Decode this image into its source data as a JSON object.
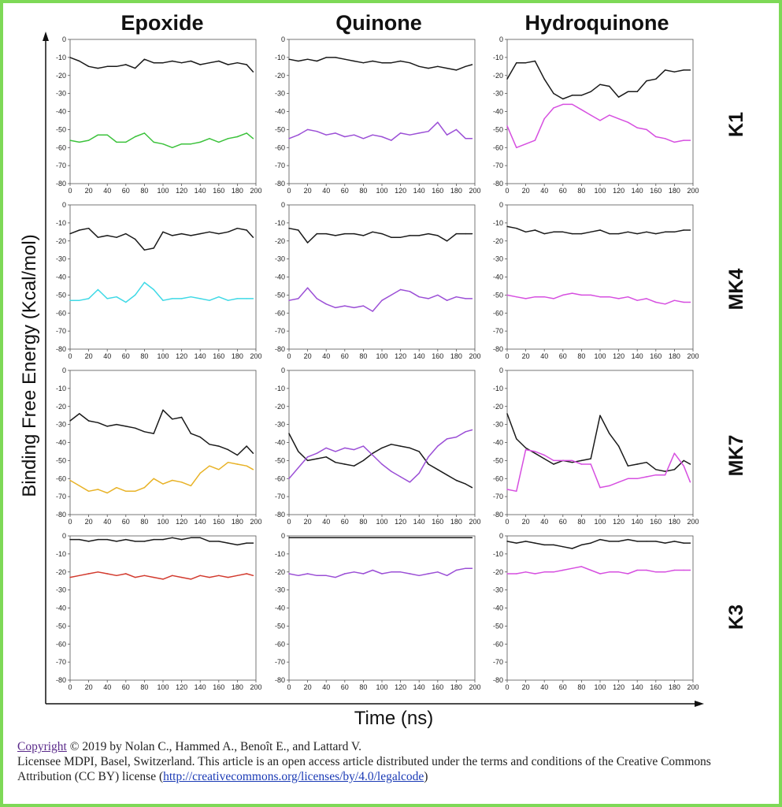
{
  "columns": [
    "Epoxide",
    "Quinone",
    "Hydroquinone"
  ],
  "rows": [
    "K1",
    "MK4",
    "MK7",
    "K3"
  ],
  "axis": {
    "ylabel": "Binding Free Energy (Kcal/mol)",
    "xlabel": "Time (ns)"
  },
  "colors": {
    "black": "#1a1a1a",
    "green": "#3cc23c",
    "cyan": "#3fd9e6",
    "orange": "#e8b226",
    "red": "#d23a2e",
    "purple": "#9b4fd6",
    "magenta": "#d64fe0",
    "frame": "#7ed957"
  },
  "footer": {
    "copyright_link": "Copyright",
    "line1_rest": " © 2019 by Nolan C., Hammed A., Benoît E., and Lattard V.",
    "line2": "Licensee MDPI, Basel, Switzerland. This article is an open access article distributed under the terms and conditions of the Creative Commons Attribution (CC BY) license (",
    "license_url": "http://creativecommons.org/licenses/by/4.0/legalcode",
    "line2_end": ")"
  },
  "chart_data": [
    {
      "type": "line",
      "row": "K1",
      "col": "Epoxide",
      "xlim": [
        0,
        200
      ],
      "ylim": [
        -80,
        0
      ],
      "x": [
        0,
        10,
        20,
        30,
        40,
        50,
        60,
        70,
        80,
        90,
        100,
        110,
        120,
        130,
        140,
        150,
        160,
        170,
        180,
        190,
        197
      ],
      "series": [
        {
          "color": "black",
          "values": [
            -10,
            -12,
            -15,
            -16,
            -15,
            -15,
            -14,
            -16,
            -11,
            -13,
            -13,
            -12,
            -13,
            -12,
            -14,
            -13,
            -12,
            -14,
            -13,
            -14,
            -18
          ]
        },
        {
          "color": "green",
          "values": [
            -56,
            -57,
            -56,
            -53,
            -53,
            -57,
            -57,
            -54,
            -52,
            -57,
            -58,
            -60,
            -58,
            -58,
            -57,
            -55,
            -57,
            -55,
            -54,
            -52,
            -55
          ]
        }
      ]
    },
    {
      "type": "line",
      "row": "K1",
      "col": "Quinone",
      "xlim": [
        0,
        200
      ],
      "ylim": [
        -80,
        0
      ],
      "x": [
        0,
        10,
        20,
        30,
        40,
        50,
        60,
        70,
        80,
        90,
        100,
        110,
        120,
        130,
        140,
        150,
        160,
        170,
        180,
        190,
        197
      ],
      "series": [
        {
          "color": "black",
          "values": [
            -11,
            -12,
            -11,
            -12,
            -10,
            -10,
            -11,
            -12,
            -13,
            -12,
            -13,
            -13,
            -12,
            -13,
            -15,
            -16,
            -15,
            -16,
            -17,
            -15,
            -14
          ]
        },
        {
          "color": "purple",
          "values": [
            -55,
            -53,
            -50,
            -51,
            -53,
            -52,
            -54,
            -53,
            -55,
            -53,
            -54,
            -56,
            -52,
            -53,
            -52,
            -51,
            -46,
            -53,
            -50,
            -55,
            -55
          ]
        }
      ]
    },
    {
      "type": "line",
      "row": "K1",
      "col": "Hydroquinone",
      "xlim": [
        0,
        200
      ],
      "ylim": [
        -80,
        0
      ],
      "x": [
        0,
        10,
        20,
        30,
        40,
        50,
        60,
        70,
        80,
        90,
        100,
        110,
        120,
        130,
        140,
        150,
        160,
        170,
        180,
        190,
        197
      ],
      "series": [
        {
          "color": "black",
          "values": [
            -22,
            -13,
            -13,
            -12,
            -22,
            -30,
            -33,
            -31,
            -31,
            -29,
            -25,
            -26,
            -32,
            -29,
            -29,
            -23,
            -22,
            -17,
            -18,
            -17,
            -17
          ]
        },
        {
          "color": "magenta",
          "values": [
            -48,
            -60,
            -58,
            -56,
            -44,
            -38,
            -36,
            -36,
            -39,
            -42,
            -45,
            -42,
            -44,
            -46,
            -49,
            -50,
            -54,
            -55,
            -57,
            -56,
            -56
          ]
        }
      ]
    },
    {
      "type": "line",
      "row": "MK4",
      "col": "Epoxide",
      "xlim": [
        0,
        200
      ],
      "ylim": [
        -80,
        0
      ],
      "x": [
        0,
        10,
        20,
        30,
        40,
        50,
        60,
        70,
        80,
        90,
        100,
        110,
        120,
        130,
        140,
        150,
        160,
        170,
        180,
        190,
        197
      ],
      "series": [
        {
          "color": "black",
          "values": [
            -16,
            -14,
            -13,
            -18,
            -17,
            -18,
            -16,
            -19,
            -25,
            -24,
            -15,
            -17,
            -16,
            -17,
            -16,
            -15,
            -16,
            -15,
            -13,
            -14,
            -18
          ]
        },
        {
          "color": "cyan",
          "values": [
            -53,
            -53,
            -52,
            -47,
            -52,
            -51,
            -54,
            -50,
            -43,
            -47,
            -53,
            -52,
            -52,
            -51,
            -52,
            -53,
            -51,
            -53,
            -52,
            -52,
            -52
          ]
        }
      ]
    },
    {
      "type": "line",
      "row": "MK4",
      "col": "Quinone",
      "xlim": [
        0,
        200
      ],
      "ylim": [
        -80,
        0
      ],
      "x": [
        0,
        10,
        20,
        30,
        40,
        50,
        60,
        70,
        80,
        90,
        100,
        110,
        120,
        130,
        140,
        150,
        160,
        170,
        180,
        190,
        197
      ],
      "series": [
        {
          "color": "black",
          "values": [
            -13,
            -14,
            -21,
            -16,
            -16,
            -17,
            -16,
            -16,
            -17,
            -15,
            -16,
            -18,
            -18,
            -17,
            -17,
            -16,
            -17,
            -20,
            -16,
            -16,
            -16
          ]
        },
        {
          "color": "purple",
          "values": [
            -53,
            -52,
            -46,
            -52,
            -55,
            -57,
            -56,
            -57,
            -56,
            -59,
            -53,
            -50,
            -47,
            -48,
            -51,
            -52,
            -50,
            -53,
            -51,
            -52,
            -52
          ]
        }
      ]
    },
    {
      "type": "line",
      "row": "MK4",
      "col": "Hydroquinone",
      "xlim": [
        0,
        200
      ],
      "ylim": [
        -80,
        0
      ],
      "x": [
        0,
        10,
        20,
        30,
        40,
        50,
        60,
        70,
        80,
        90,
        100,
        110,
        120,
        130,
        140,
        150,
        160,
        170,
        180,
        190,
        197
      ],
      "series": [
        {
          "color": "black",
          "values": [
            -12,
            -13,
            -15,
            -14,
            -16,
            -15,
            -15,
            -16,
            -16,
            -15,
            -14,
            -16,
            -16,
            -15,
            -16,
            -15,
            -16,
            -15,
            -15,
            -14,
            -14
          ]
        },
        {
          "color": "magenta",
          "values": [
            -50,
            -51,
            -52,
            -51,
            -51,
            -52,
            -50,
            -49,
            -50,
            -50,
            -51,
            -51,
            -52,
            -51,
            -53,
            -52,
            -54,
            -55,
            -53,
            -54,
            -54
          ]
        }
      ]
    },
    {
      "type": "line",
      "row": "MK7",
      "col": "Epoxide",
      "xlim": [
        0,
        200
      ],
      "ylim": [
        -80,
        0
      ],
      "x": [
        0,
        10,
        20,
        30,
        40,
        50,
        60,
        70,
        80,
        90,
        100,
        110,
        120,
        130,
        140,
        150,
        160,
        170,
        180,
        190,
        197
      ],
      "series": [
        {
          "color": "black",
          "values": [
            -28,
            -24,
            -28,
            -29,
            -31,
            -30,
            -31,
            -32,
            -34,
            -35,
            -22,
            -27,
            -26,
            -35,
            -37,
            -41,
            -42,
            -44,
            -47,
            -42,
            -46
          ]
        },
        {
          "color": "orange",
          "values": [
            -61,
            -64,
            -67,
            -66,
            -68,
            -65,
            -67,
            -67,
            -65,
            -60,
            -63,
            -61,
            -62,
            -64,
            -57,
            -53,
            -55,
            -51,
            -52,
            -53,
            -55
          ]
        }
      ]
    },
    {
      "type": "line",
      "row": "MK7",
      "col": "Quinone",
      "xlim": [
        0,
        200
      ],
      "ylim": [
        -80,
        0
      ],
      "x": [
        0,
        10,
        20,
        30,
        40,
        50,
        60,
        70,
        80,
        90,
        100,
        110,
        120,
        130,
        140,
        150,
        160,
        170,
        180,
        190,
        197
      ],
      "series": [
        {
          "color": "black",
          "values": [
            -35,
            -45,
            -50,
            -49,
            -48,
            -51,
            -52,
            -53,
            -50,
            -46,
            -43,
            -41,
            -42,
            -43,
            -45,
            -52,
            -55,
            -58,
            -61,
            -63,
            -65
          ]
        },
        {
          "color": "purple",
          "values": [
            -60,
            -54,
            -48,
            -46,
            -43,
            -45,
            -43,
            -44,
            -42,
            -47,
            -52,
            -56,
            -59,
            -62,
            -57,
            -48,
            -42,
            -38,
            -37,
            -34,
            -33
          ]
        }
      ]
    },
    {
      "type": "line",
      "row": "MK7",
      "col": "Hydroquinone",
      "xlim": [
        0,
        200
      ],
      "ylim": [
        -80,
        0
      ],
      "x": [
        0,
        10,
        20,
        30,
        40,
        50,
        60,
        70,
        80,
        90,
        100,
        110,
        120,
        130,
        140,
        150,
        160,
        170,
        180,
        190,
        197
      ],
      "series": [
        {
          "color": "black",
          "values": [
            -24,
            -38,
            -43,
            -46,
            -49,
            -52,
            -50,
            -51,
            -50,
            -49,
            -25,
            -35,
            -42,
            -53,
            -52,
            -51,
            -55,
            -56,
            -55,
            -50,
            -52
          ]
        },
        {
          "color": "magenta",
          "values": [
            -66,
            -67,
            -44,
            -45,
            -47,
            -50,
            -50,
            -50,
            -52,
            -52,
            -65,
            -64,
            -62,
            -60,
            -60,
            -59,
            -58,
            -58,
            -46,
            -53,
            -62
          ]
        }
      ]
    },
    {
      "type": "line",
      "row": "K3",
      "col": "Epoxide",
      "xlim": [
        0,
        200
      ],
      "ylim": [
        -80,
        0
      ],
      "x": [
        0,
        10,
        20,
        30,
        40,
        50,
        60,
        70,
        80,
        90,
        100,
        110,
        120,
        130,
        140,
        150,
        160,
        170,
        180,
        190,
        197
      ],
      "series": [
        {
          "color": "black",
          "values": [
            -2,
            -2,
            -3,
            -2,
            -2,
            -3,
            -2,
            -3,
            -3,
            -2,
            -2,
            -1,
            -2,
            -1,
            -1,
            -3,
            -3,
            -4,
            -5,
            -4,
            -4
          ]
        },
        {
          "color": "red",
          "values": [
            -23,
            -22,
            -21,
            -20,
            -21,
            -22,
            -21,
            -23,
            -22,
            -23,
            -24,
            -22,
            -23,
            -24,
            -22,
            -23,
            -22,
            -23,
            -22,
            -21,
            -22
          ]
        }
      ]
    },
    {
      "type": "line",
      "row": "K3",
      "col": "Quinone",
      "xlim": [
        0,
        200
      ],
      "ylim": [
        -80,
        0
      ],
      "x": [
        0,
        10,
        20,
        30,
        40,
        50,
        60,
        70,
        80,
        90,
        100,
        110,
        120,
        130,
        140,
        150,
        160,
        170,
        180,
        190,
        197
      ],
      "series": [
        {
          "color": "black",
          "values": [
            -1,
            -1,
            -1,
            -1,
            -1,
            -1,
            -1,
            -1,
            -1,
            -1,
            -1,
            -1,
            -1,
            -1,
            -1,
            -1,
            -1,
            -1,
            -1,
            -1,
            -1
          ]
        },
        {
          "color": "purple",
          "values": [
            -21,
            -22,
            -21,
            -22,
            -22,
            -23,
            -21,
            -20,
            -21,
            -19,
            -21,
            -20,
            -20,
            -21,
            -22,
            -21,
            -20,
            -22,
            -19,
            -18,
            -18
          ]
        }
      ]
    },
    {
      "type": "line",
      "row": "K3",
      "col": "Hydroquinone",
      "xlim": [
        0,
        200
      ],
      "ylim": [
        -80,
        0
      ],
      "x": [
        0,
        10,
        20,
        30,
        40,
        50,
        60,
        70,
        80,
        90,
        100,
        110,
        120,
        130,
        140,
        150,
        160,
        170,
        180,
        190,
        197
      ],
      "series": [
        {
          "color": "black",
          "values": [
            -3,
            -4,
            -3,
            -4,
            -5,
            -5,
            -6,
            -7,
            -5,
            -4,
            -2,
            -3,
            -3,
            -2,
            -3,
            -3,
            -3,
            -4,
            -3,
            -4,
            -4
          ]
        },
        {
          "color": "magenta",
          "values": [
            -21,
            -21,
            -20,
            -21,
            -20,
            -20,
            -19,
            -18,
            -17,
            -19,
            -21,
            -20,
            -20,
            -21,
            -19,
            -19,
            -20,
            -20,
            -19,
            -19,
            -19
          ]
        }
      ]
    }
  ]
}
